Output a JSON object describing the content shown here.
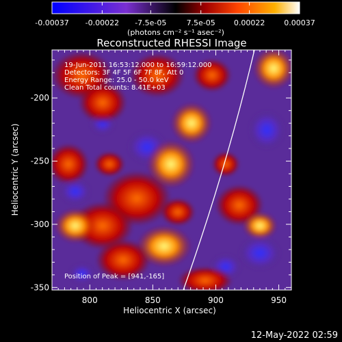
{
  "colorbar": {
    "ticks": [
      "-0.00037",
      "-0.00022",
      "-7.5e-05",
      "7.5e-05",
      "0.00022",
      "0.00037"
    ],
    "tick_values": [
      -0.00037,
      -0.00022,
      -7.5e-05,
      7.5e-05,
      0.00022,
      0.00037
    ],
    "range": [
      -0.00037,
      0.00037
    ],
    "units_label": "(photons cm⁻² s⁻¹ asec⁻²)",
    "colors": [
      "#0000ff",
      "#7a2fd1",
      "#000000",
      "#a00000",
      "#ff4500",
      "#ffb000",
      "#ffffff"
    ]
  },
  "title": "Reconstructed RHESSI Image",
  "annotations": {
    "line1": "19-Jun-2011 16:53:12.000 to 16:59:12.000",
    "line2": "Detectors: 3F 4F 5F 6F 7F 8F, Att 0",
    "line3": "Energy Range: 25.0 - 50.0 keV",
    "line4": "Clean   Total counts: 8.41E+03",
    "peak": "Position of Peak = [941,-165]"
  },
  "x_axis": {
    "label": "Heliocentric X (arcsec)",
    "ticks": [
      "800",
      "850",
      "900",
      "950"
    ],
    "tick_values": [
      800,
      850,
      900,
      950
    ],
    "range": [
      770,
      960
    ]
  },
  "y_axis": {
    "label": "Heliocentric Y (arcsec)",
    "ticks": [
      "-200",
      "-250",
      "-300",
      "-350"
    ],
    "tick_values": [
      -200,
      -250,
      -300,
      -350
    ],
    "range": [
      -352,
      -162
    ]
  },
  "timestamp": "12-May-2022 02:59"
}
